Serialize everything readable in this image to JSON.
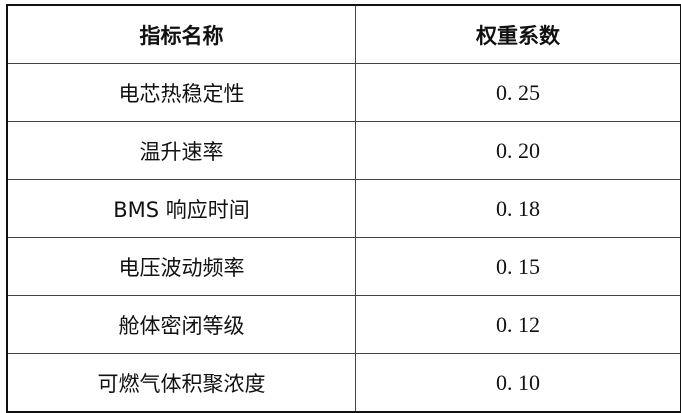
{
  "headers": [
    "指标名称",
    "权重系数"
  ],
  "rows": [
    {
      "name": "电芯热稳定性",
      "weight": "0. 25"
    },
    {
      "name": "温升速率",
      "weight": "0. 20"
    },
    {
      "name": "BMS 响应时间",
      "weight": "0. 18"
    },
    {
      "name": "电压波动频率",
      "weight": "0. 15"
    },
    {
      "name": "舱体密闭等级",
      "weight": "0. 12"
    },
    {
      "name": "可燃气体积聚浓度",
      "weight": "0. 10"
    }
  ]
}
